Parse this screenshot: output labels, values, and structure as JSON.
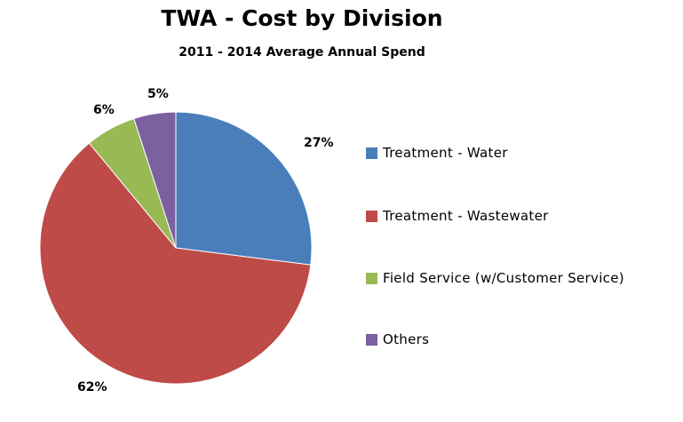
{
  "chart_data": {
    "type": "pie",
    "title": "TWA - Cost by Division",
    "subtitle": "2011 - 2014 Average Annual Spend",
    "legend_placement": "right",
    "slices": [
      {
        "name": "Treatment - Water",
        "value": 27,
        "label": "27%",
        "color": "#4a7ebb"
      },
      {
        "name": "Treatment - Wastewater",
        "value": 62,
        "label": "62%",
        "color": "#be4b48"
      },
      {
        "name": "Field Service (w/Customer Service)",
        "value": 6,
        "label": "6%",
        "color": "#98b954"
      },
      {
        "name": "Others",
        "value": 5,
        "label": "5%",
        "color": "#7d60a0"
      }
    ]
  }
}
